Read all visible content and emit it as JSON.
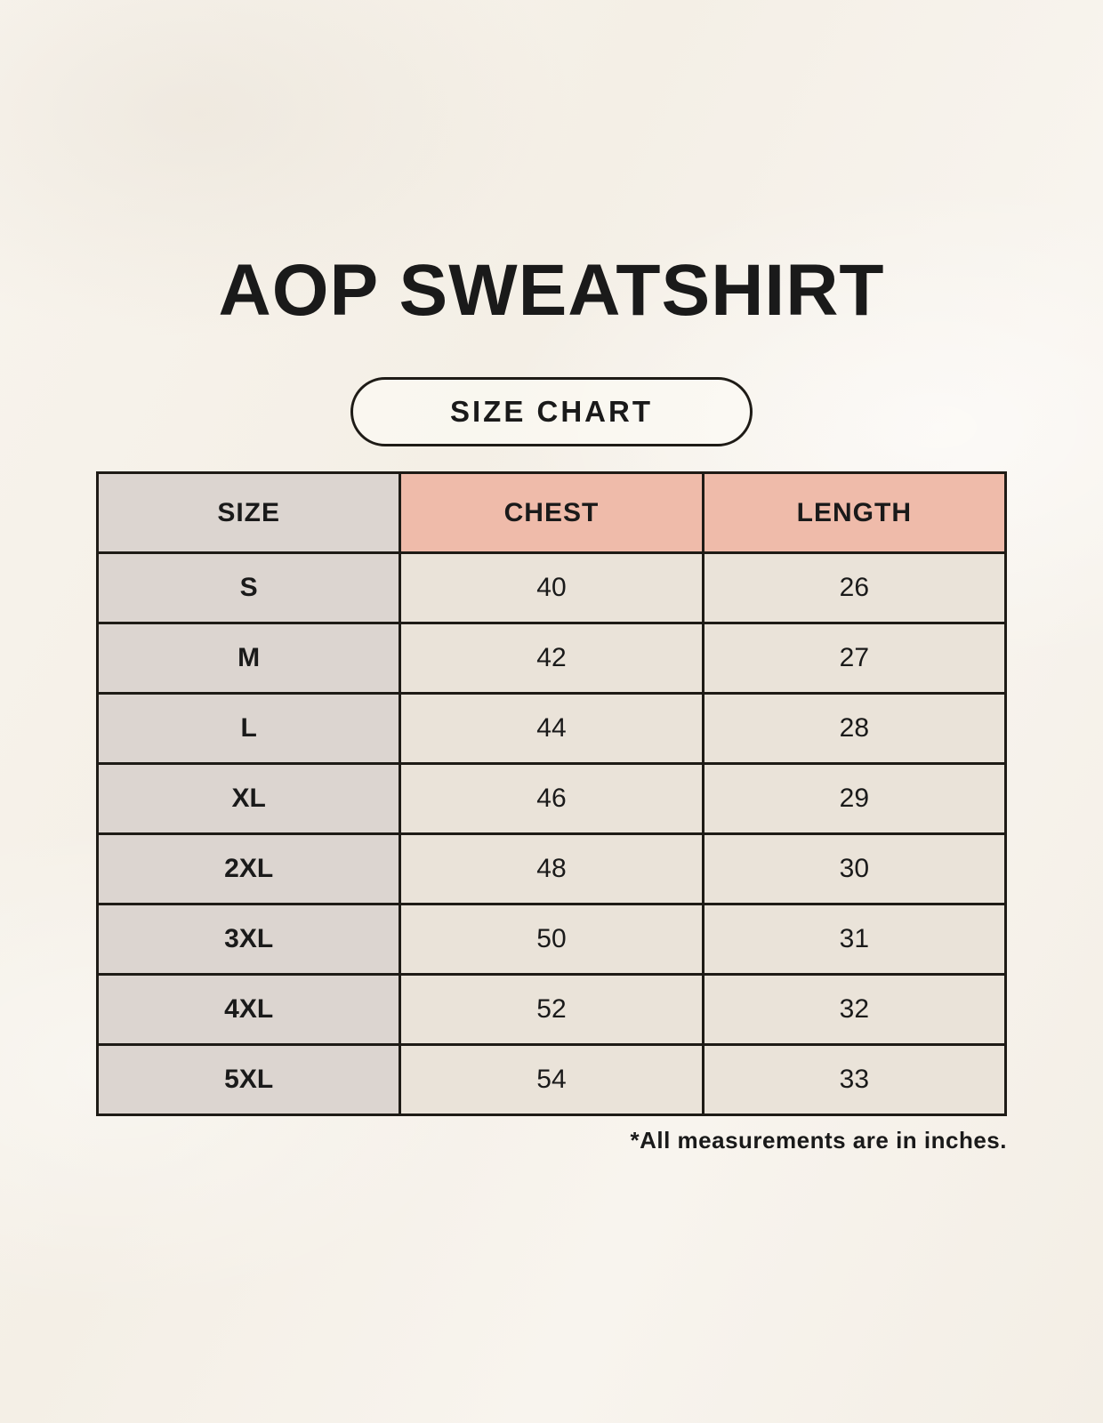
{
  "page": {
    "title": "AOP SWEATSHIRT",
    "badge_label": "SIZE CHART",
    "footnote": "*All measurements are in inches."
  },
  "colors": {
    "background": "#f6f1e9",
    "size_column": "#dcd5d0",
    "accent_header": "#efbbaa",
    "data_cell": "#eae3d9",
    "border": "#1e1b16",
    "text": "#1a1a1a"
  },
  "table": {
    "columns": [
      "SIZE",
      "CHEST",
      "LENGTH"
    ],
    "rows": [
      {
        "size": "S",
        "chest": "40",
        "length": "26"
      },
      {
        "size": "M",
        "chest": "42",
        "length": "27"
      },
      {
        "size": "L",
        "chest": "44",
        "length": "28"
      },
      {
        "size": "XL",
        "chest": "46",
        "length": "29"
      },
      {
        "size": "2XL",
        "chest": "48",
        "length": "30"
      },
      {
        "size": "3XL",
        "chest": "50",
        "length": "31"
      },
      {
        "size": "4XL",
        "chest": "52",
        "length": "32"
      },
      {
        "size": "5XL",
        "chest": "54",
        "length": "33"
      }
    ]
  },
  "chart_data": {
    "type": "table",
    "title": "AOP SWEATSHIRT",
    "subtitle": "SIZE CHART",
    "columns": [
      "SIZE",
      "CHEST",
      "LENGTH"
    ],
    "rows": [
      [
        "S",
        40,
        26
      ],
      [
        "M",
        42,
        27
      ],
      [
        "L",
        44,
        28
      ],
      [
        "XL",
        46,
        29
      ],
      [
        "2XL",
        48,
        30
      ],
      [
        "3XL",
        50,
        31
      ],
      [
        "4XL",
        52,
        32
      ],
      [
        "5XL",
        54,
        33
      ]
    ],
    "units": "inches",
    "note": "*All measurements are in inches."
  }
}
